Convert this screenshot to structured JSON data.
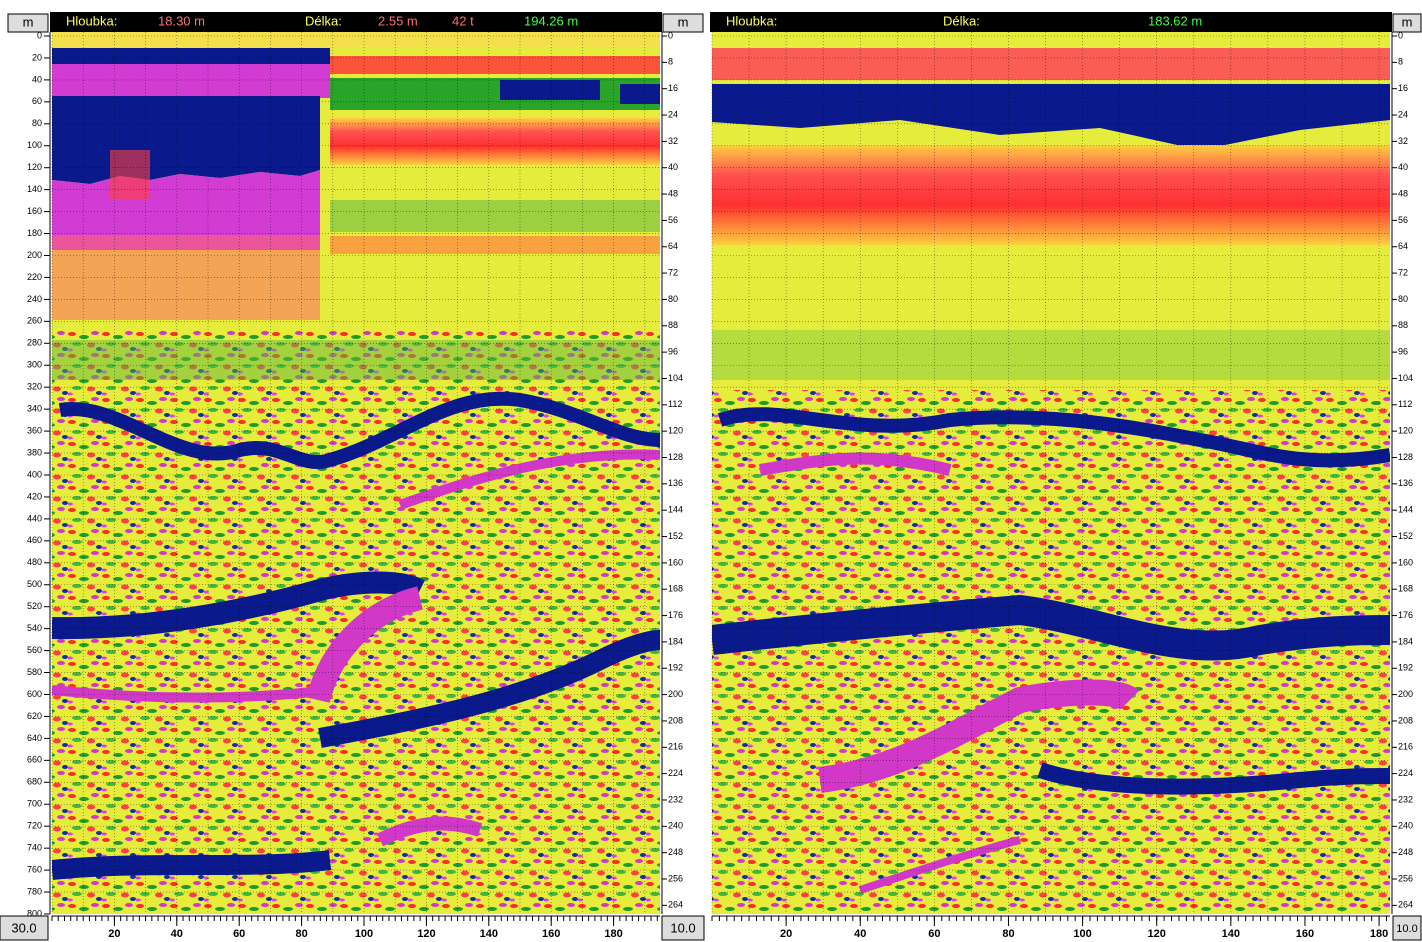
{
  "panels": [
    {
      "corner_unit": "m",
      "header": {
        "depth_label": "Hloubka:",
        "depth_value": "18.30 m",
        "length_label": "Délka:",
        "length_value": "2.55 m",
        "count": "42 t",
        "total": "194.26 m"
      },
      "right_unit": "m",
      "left_ticks": [
        0,
        20,
        40,
        60,
        80,
        100,
        120,
        140,
        160,
        180,
        200,
        220,
        240,
        260,
        280,
        300,
        320,
        340,
        360,
        380,
        400,
        420,
        440,
        460,
        480,
        500,
        520,
        540,
        560,
        580,
        600,
        620,
        640,
        660,
        680,
        700,
        720,
        740,
        760,
        780,
        800
      ],
      "right_ticks": [
        0,
        8,
        16,
        24,
        32,
        40,
        48,
        56,
        64,
        72,
        80,
        88,
        96,
        104,
        112,
        120,
        128,
        136,
        144,
        152,
        160,
        168,
        176,
        184,
        192,
        200,
        208,
        216,
        224,
        232,
        240,
        248,
        256,
        264
      ],
      "bottom_ticks": [
        20,
        40,
        60,
        80,
        100,
        120,
        140,
        160,
        180
      ],
      "bottom_left": "30.0",
      "bottom_right": "10.0"
    },
    {
      "header": {
        "depth_label": "Hloubka:",
        "length_label": "Délka:",
        "total": "183.62 m"
      },
      "right_unit": "m",
      "right_ticks": [
        0,
        8,
        16,
        24,
        32,
        40,
        48,
        56,
        64,
        72,
        80,
        88,
        96,
        104,
        112,
        120,
        128,
        136,
        144,
        152,
        160,
        168,
        176,
        184,
        192,
        200,
        208,
        216,
        224,
        232,
        240,
        248,
        256,
        264
      ],
      "bottom_ticks": [
        20,
        40,
        60,
        80,
        100,
        120,
        140,
        160,
        180
      ],
      "bottom_right": "10.0"
    }
  ]
}
